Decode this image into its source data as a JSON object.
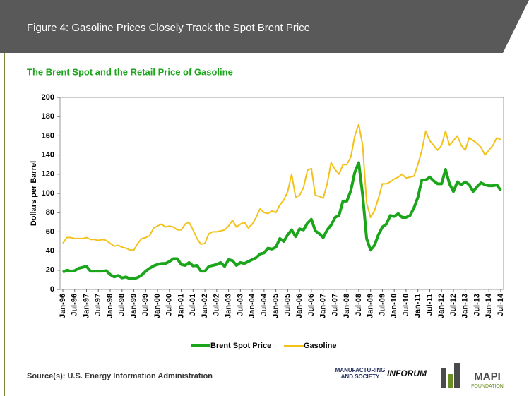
{
  "header": {
    "title": "Figure 4:  Gasoline Prices Closely Track the Spot Brent Price"
  },
  "chart_data": {
    "type": "line",
    "title": "The Brent Spot and the Retail Price of Gasoline",
    "y_label": "Dollars per Barrel",
    "categories": [
      "Jan-96",
      null,
      null,
      "Jul-96",
      null,
      null,
      "Jan-97",
      null,
      null,
      "Jul-97",
      null,
      null,
      "Jan-98",
      null,
      null,
      "Jul-98",
      null,
      null,
      "Jan-99",
      null,
      null,
      "Jul-99",
      null,
      null,
      "Jan-00",
      null,
      null,
      "Jul-00",
      null,
      null,
      "Jan-01",
      null,
      null,
      "Jul-01",
      null,
      null,
      "Jan-02",
      null,
      null,
      "Jul-02",
      null,
      null,
      "Jan-03",
      null,
      null,
      "Jul-03",
      null,
      null,
      "Jan-04",
      null,
      null,
      "Jul-04",
      null,
      null,
      "Jan-05",
      null,
      null,
      "Jul-05",
      null,
      null,
      "Jan-06",
      null,
      null,
      "Jul-06",
      null,
      null,
      "Jan-07",
      null,
      null,
      "Jul-07",
      null,
      null,
      "Jan-08",
      null,
      null,
      "Jul-08",
      null,
      null,
      "Jan-09",
      null,
      null,
      "Jul-09",
      null,
      null,
      "Jan-10",
      null,
      null,
      "Jul-10",
      null,
      null,
      "Jan-11",
      null,
      null,
      "Jul-11",
      null,
      null,
      "Jan-12",
      null,
      null,
      "Jul-12",
      null,
      null,
      "Jan-13",
      null,
      null,
      "Jul-13",
      null,
      null,
      "Jan-14",
      null,
      null,
      "Jul-14"
    ],
    "series": [
      {
        "name": "Brent Spot Price",
        "color": "#1aa51a",
        "values": [
          18,
          20,
          19,
          19.5,
          22,
          23,
          24,
          19,
          19,
          19,
          19,
          19.5,
          15.5,
          13,
          14.5,
          12,
          13,
          11,
          11,
          12.5,
          15,
          19,
          22,
          24.5,
          26,
          27,
          27,
          29,
          32,
          32,
          26,
          25,
          28,
          24.5,
          25,
          19,
          19,
          24,
          25,
          26,
          28,
          24,
          31,
          30,
          25,
          28,
          27,
          29,
          31,
          33,
          37,
          38,
          43,
          42,
          44,
          53,
          50,
          57,
          62,
          55,
          63,
          62,
          69,
          73,
          61,
          58,
          54,
          62,
          67,
          75,
          77,
          92,
          92,
          103,
          122,
          132,
          98,
          53,
          41,
          46,
          57,
          65,
          68,
          77,
          76,
          79,
          75,
          75,
          77,
          85,
          96,
          114,
          114,
          117,
          113,
          110,
          110,
          125,
          110,
          102,
          112,
          109,
          112,
          109,
          102,
          107,
          111,
          109,
          108,
          108,
          109,
          103
        ]
      },
      {
        "name": "Gasoline",
        "color": "#f2c21b",
        "values": [
          48,
          54,
          54,
          53,
          53,
          53,
          54,
          52,
          52,
          51,
          52,
          51,
          48,
          45,
          46,
          44,
          43,
          41,
          41,
          48,
          53,
          54,
          56,
          64,
          66,
          68,
          65,
          66,
          65,
          62,
          62,
          68,
          70,
          62,
          53,
          47,
          48,
          58,
          60,
          60,
          61,
          62,
          66,
          72,
          65,
          68,
          70,
          64,
          68,
          75,
          84,
          80,
          79,
          82,
          80,
          88,
          93,
          102,
          120,
          96,
          98,
          106,
          124,
          126,
          98,
          97,
          95,
          110,
          132,
          125,
          120,
          130,
          130,
          138,
          160,
          172,
          150,
          90,
          75,
          82,
          95,
          110,
          110,
          112,
          115,
          117,
          120,
          116,
          117,
          118,
          130,
          145,
          165,
          155,
          150,
          145,
          150,
          165,
          150,
          155,
          160,
          150,
          145,
          158,
          155,
          152,
          148,
          140,
          145,
          150,
          158,
          156
        ]
      }
    ],
    "ylim": [
      0,
      200
    ],
    "yticks": [
      0,
      20,
      40,
      60,
      80,
      100,
      120,
      140,
      160,
      180,
      200
    ],
    "grid": false,
    "legend": "bottom"
  },
  "footer": {
    "source": "Source(s): U.S. Energy Information Administration",
    "logos": [
      "MANUFACTURING",
      "AND SOCIETY",
      "INFORUM",
      "MAPI",
      "FOUNDATION"
    ]
  }
}
